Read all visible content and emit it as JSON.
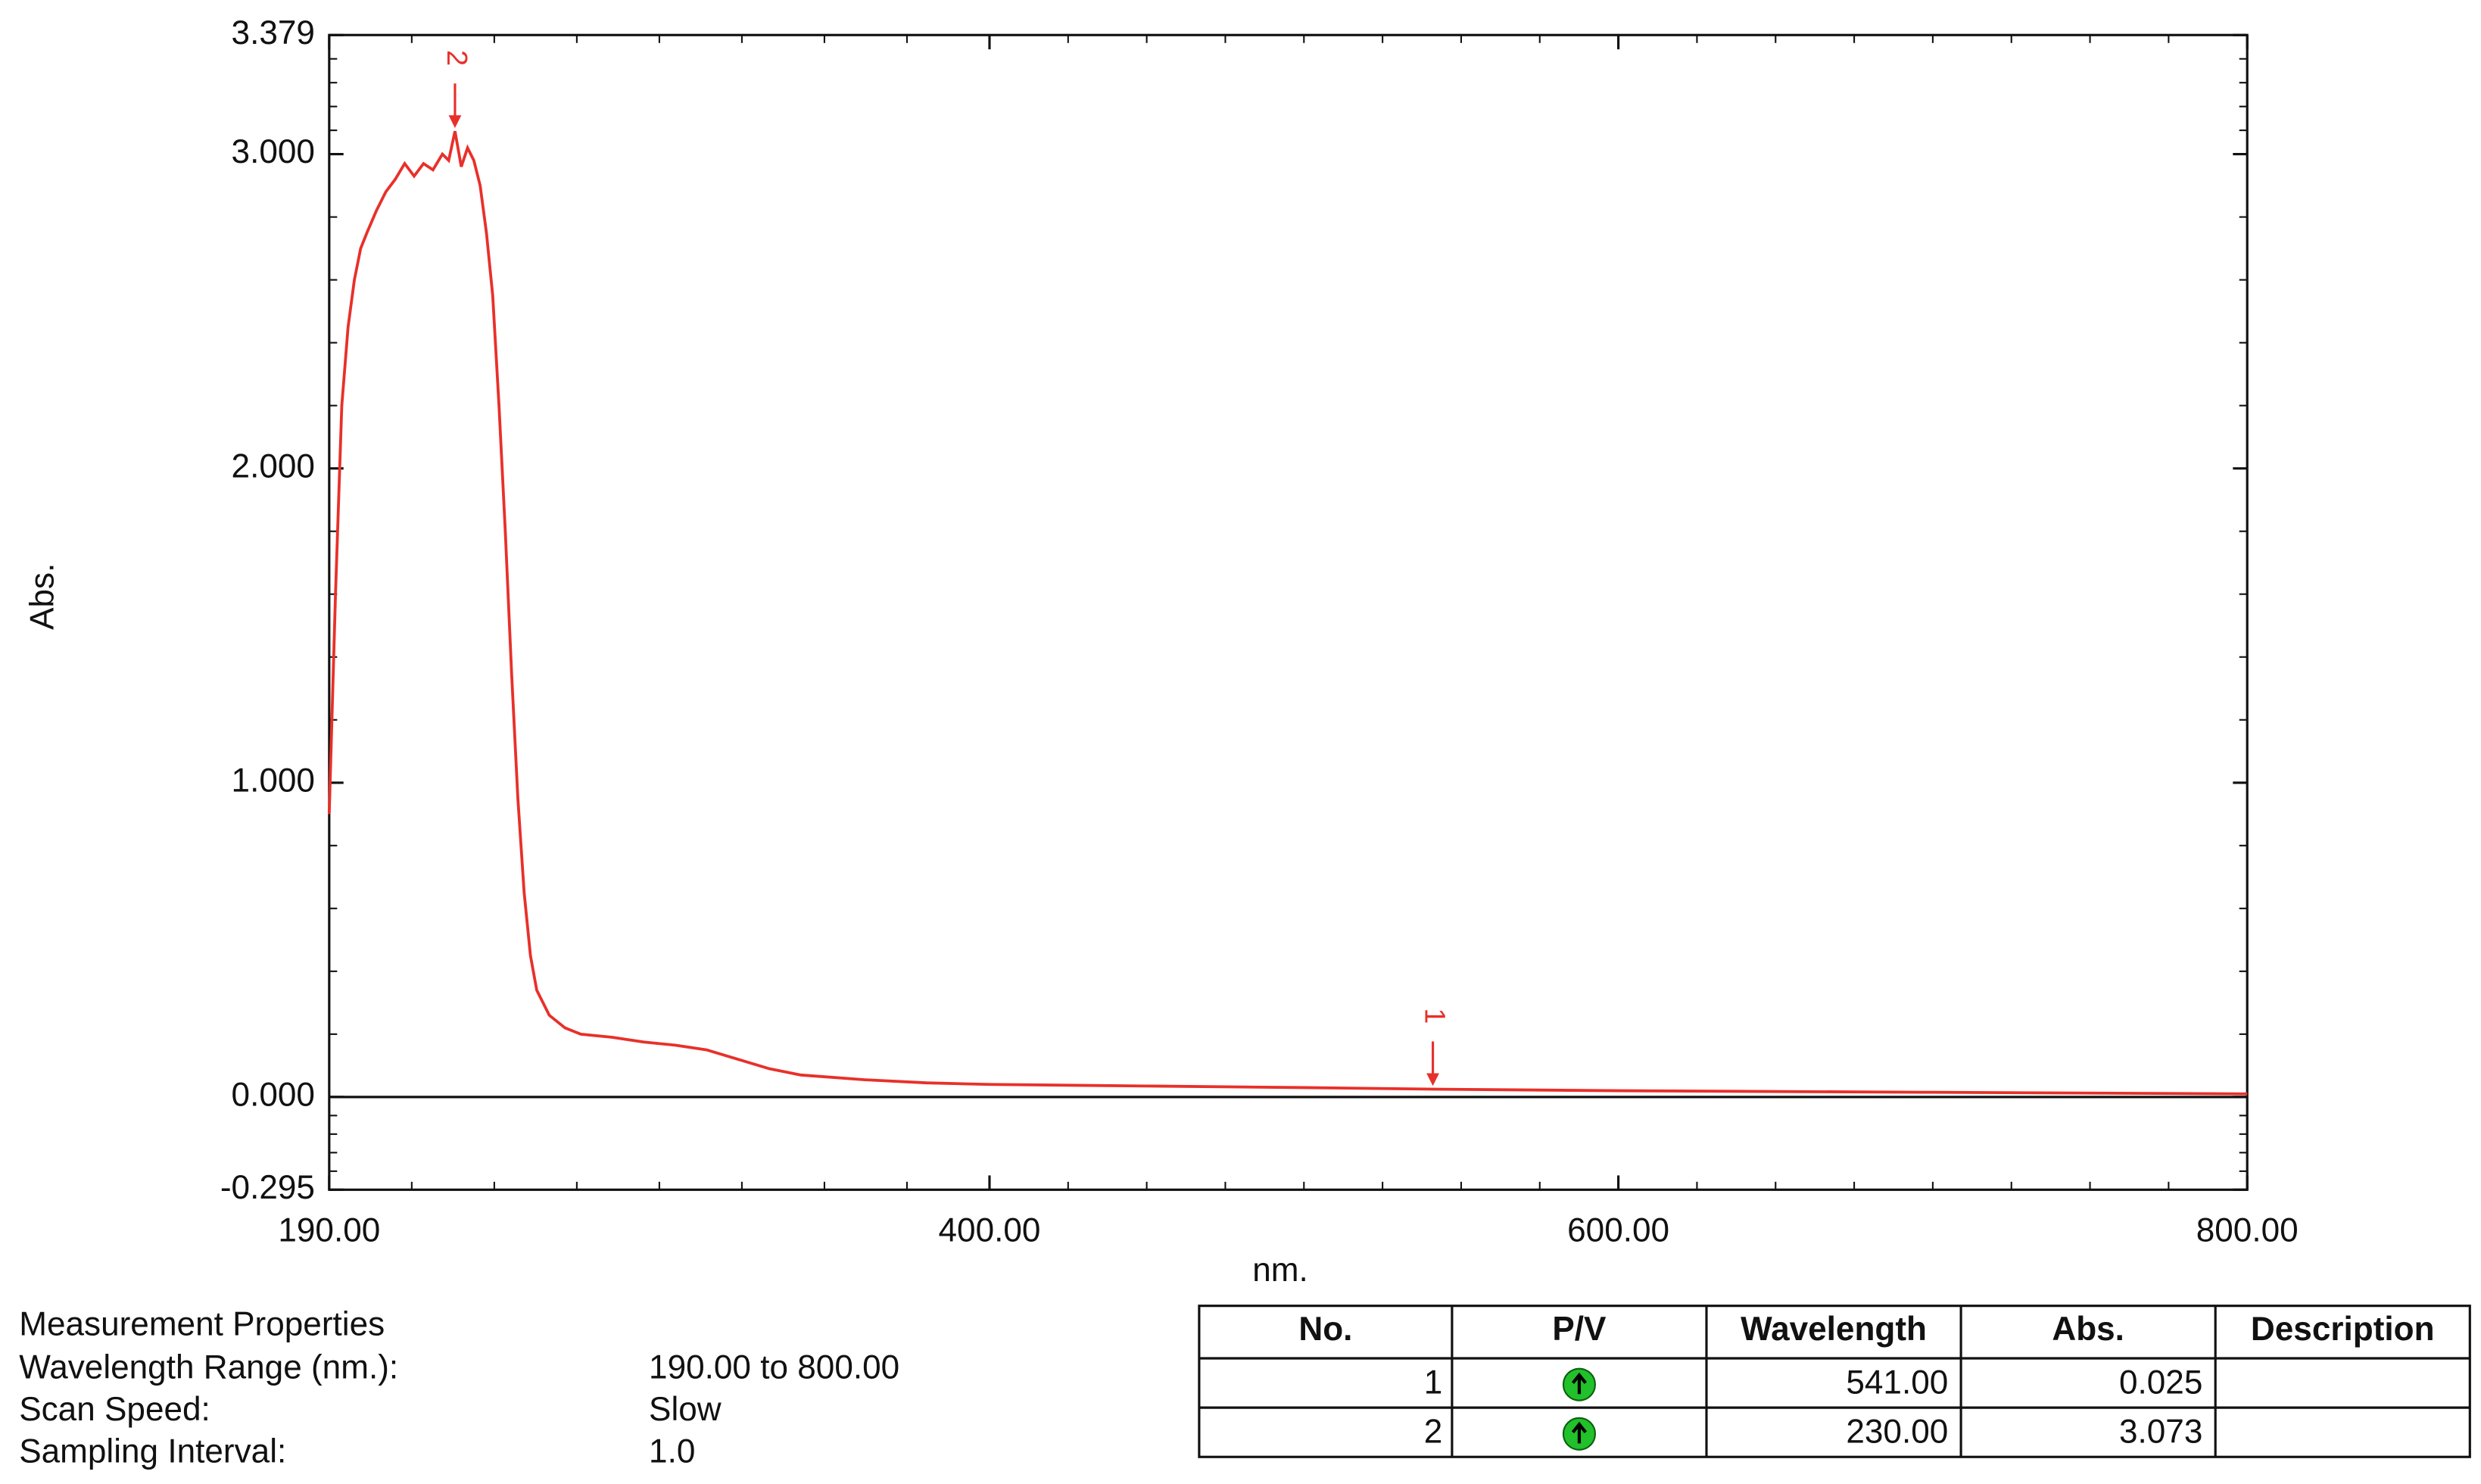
{
  "chart_data": {
    "type": "line",
    "y_label": "Abs.",
    "x_label": "nm.",
    "color": "#e8302a",
    "x": [
      190,
      192,
      194,
      196,
      198,
      200,
      202,
      205,
      208,
      211,
      214,
      217,
      220,
      223,
      226,
      228,
      230,
      232,
      234,
      236,
      238,
      240,
      242,
      244,
      246,
      248,
      250,
      252,
      254,
      256,
      260,
      265,
      270,
      280,
      290,
      300,
      310,
      320,
      330,
      340,
      360,
      380,
      400,
      450,
      500,
      541,
      600,
      700,
      800
    ],
    "values": [
      0.9,
      1.6,
      2.2,
      2.45,
      2.6,
      2.7,
      2.75,
      2.82,
      2.88,
      2.92,
      2.97,
      2.93,
      2.97,
      2.95,
      3.0,
      2.98,
      3.073,
      2.96,
      3.02,
      2.98,
      2.9,
      2.75,
      2.55,
      2.2,
      1.8,
      1.35,
      0.95,
      0.65,
      0.45,
      0.34,
      0.26,
      0.22,
      0.2,
      0.19,
      0.175,
      0.165,
      0.15,
      0.12,
      0.09,
      0.07,
      0.055,
      0.045,
      0.04,
      0.035,
      0.03,
      0.025,
      0.02,
      0.015,
      0.01
    ],
    "xlim": [
      190,
      800
    ],
    "xticks": [
      {
        "value": 190,
        "label": "190.00"
      },
      {
        "value": 400,
        "label": "400.00"
      },
      {
        "value": 600,
        "label": "600.00"
      },
      {
        "value": 800,
        "label": "800.00"
      }
    ],
    "ylim": [
      -0.295,
      3.379
    ],
    "yticks": [
      {
        "value": -0.295,
        "label": "-0.295"
      },
      {
        "value": 0,
        "label": "0.000"
      },
      {
        "value": 1,
        "label": "1.000"
      },
      {
        "value": 2,
        "label": "2.000"
      },
      {
        "value": 3,
        "label": "3.000"
      },
      {
        "value": 3.379,
        "label": "3.379"
      }
    ],
    "annotations": [
      {
        "text": "1",
        "x": 541,
        "y": 0.025
      },
      {
        "text": "2",
        "x": 230,
        "y": 3.073
      }
    ]
  },
  "measurement_properties": {
    "title": "Measurement Properties",
    "items": [
      {
        "label": "Wavelength Range (nm.):",
        "value": "190.00 to 800.00"
      },
      {
        "label": "Scan Speed:",
        "value": "Slow"
      },
      {
        "label": "Sampling Interval:",
        "value": "1.0"
      }
    ]
  },
  "peak_table": {
    "headers": [
      "No.",
      "P/V",
      "Wavelength",
      "Abs.",
      "Description"
    ],
    "rows": [
      {
        "no": "1",
        "wavelength": "541.00",
        "abs": "0.025"
      },
      {
        "no": "2",
        "wavelength": "230.00",
        "abs": "3.073"
      }
    ]
  }
}
